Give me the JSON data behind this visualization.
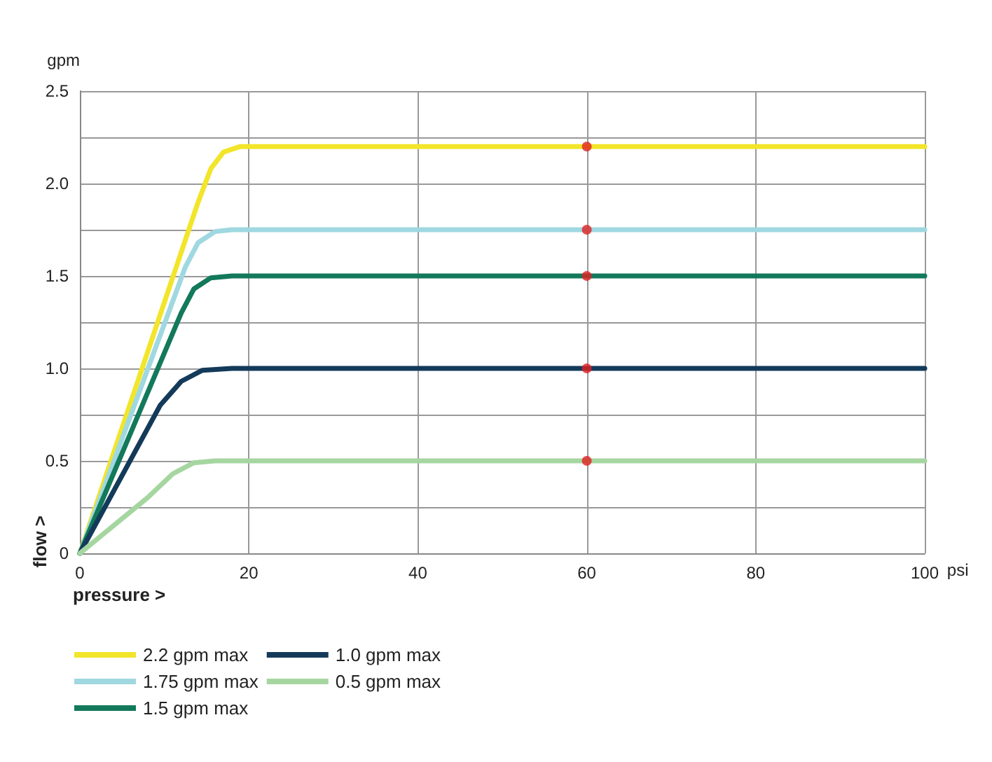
{
  "chart_data": {
    "type": "line",
    "xlabel": "psi",
    "ylabel": "gpm",
    "annotations": [
      "pressure >",
      "flow >"
    ],
    "xlim": [
      0,
      100
    ],
    "xticks": [
      0,
      20,
      40,
      60,
      80,
      100
    ],
    "ylim": [
      0,
      2.5
    ],
    "yticks": [
      0,
      {
        "value": 0.25,
        "label": null
      },
      0.5,
      {
        "value": 0.75,
        "label": null
      },
      {
        "value": 1,
        "label": "1.0"
      },
      {
        "value": 1.25,
        "label": null
      },
      1.5,
      {
        "value": 1.75,
        "label": null
      },
      {
        "value": 2,
        "label": "2.0"
      },
      {
        "value": 2.25,
        "label": null
      },
      2.5
    ],
    "grid": true,
    "legend": "bottom left",
    "marker": "none",
    "line_style": "solid",
    "series": [
      {
        "name": "2.2 gpm max",
        "color": "#f2e52a",
        "x": [
          0,
          14,
          15.5,
          17,
          19,
          100
        ],
        "values": [
          0,
          1.9,
          2.08,
          2.17,
          2.2,
          2.2
        ]
      },
      {
        "name": "1.75 gpm max",
        "color": "#9fd8e0",
        "x": [
          0,
          12.5,
          14,
          16,
          18,
          100
        ],
        "values": [
          0,
          1.55,
          1.68,
          1.74,
          1.75,
          1.75
        ]
      },
      {
        "name": "1.5 gpm max",
        "color": "#12795a",
        "x": [
          0,
          12,
          13.5,
          15.5,
          18,
          100
        ],
        "values": [
          0,
          1.3,
          1.43,
          1.49,
          1.5,
          1.5
        ]
      },
      {
        "name": "1.0 gpm max",
        "color": "#143a5a",
        "x": [
          0,
          9.5,
          12,
          14.5,
          18,
          100
        ],
        "values": [
          0,
          0.8,
          0.93,
          0.99,
          1.0,
          1.0
        ]
      },
      {
        "name": "0.5 gpm max",
        "color": "#a6d6a0",
        "x": [
          0,
          8,
          11,
          13.5,
          16,
          100
        ],
        "values": [
          0,
          0.3,
          0.43,
          0.49,
          0.5,
          0.5
        ]
      },
      {
        "type": "scatter",
        "color": "#e02020",
        "marker": "circle",
        "x": [
          60,
          60,
          60,
          60,
          60
        ],
        "values": [
          2.2,
          1.75,
          1.5,
          1.0,
          0.5
        ]
      }
    ]
  }
}
